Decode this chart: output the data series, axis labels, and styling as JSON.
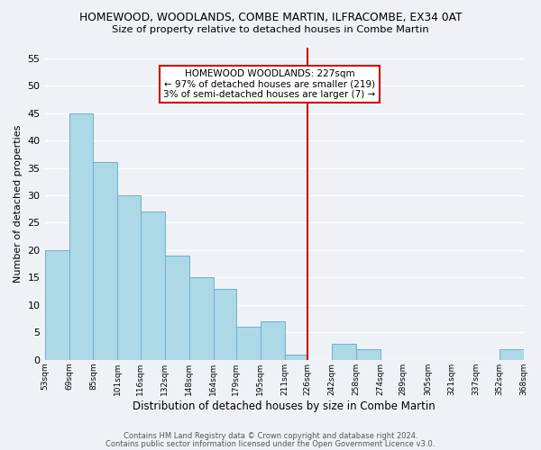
{
  "title": "HOMEWOOD, WOODLANDS, COMBE MARTIN, ILFRACOMBE, EX34 0AT",
  "subtitle": "Size of property relative to detached houses in Combe Martin",
  "xlabel": "Distribution of detached houses by size in Combe Martin",
  "ylabel": "Number of detached properties",
  "bar_color": "#add8e6",
  "bar_edge_color": "#6ab0d4",
  "background_color": "#eef2f7",
  "grid_color": "#ffffff",
  "bin_edges": [
    53,
    69,
    85,
    101,
    116,
    132,
    148,
    164,
    179,
    195,
    211,
    226,
    242,
    258,
    274,
    289,
    305,
    321,
    337,
    352,
    368
  ],
  "bin_labels": [
    "53sqm",
    "69sqm",
    "85sqm",
    "101sqm",
    "116sqm",
    "132sqm",
    "148sqm",
    "164sqm",
    "179sqm",
    "195sqm",
    "211sqm",
    "226sqm",
    "242sqm",
    "258sqm",
    "274sqm",
    "289sqm",
    "305sqm",
    "321sqm",
    "337sqm",
    "352sqm",
    "368sqm"
  ],
  "counts": [
    20,
    45,
    36,
    30,
    27,
    19,
    15,
    13,
    6,
    7,
    1,
    0,
    3,
    2,
    0,
    0,
    0,
    0,
    0,
    2
  ],
  "property_line_x": 226,
  "property_line_color": "#cc0000",
  "ylim": [
    0,
    57
  ],
  "yticks": [
    0,
    5,
    10,
    15,
    20,
    25,
    30,
    35,
    40,
    45,
    50,
    55
  ],
  "annotation_title": "HOMEWOOD WOODLANDS: 227sqm",
  "annotation_line1": "← 97% of detached houses are smaller (219)",
  "annotation_line2": "3% of semi-detached houses are larger (7) →",
  "footer_line1": "Contains HM Land Registry data © Crown copyright and database right 2024.",
  "footer_line2": "Contains public sector information licensed under the Open Government Licence v3.0."
}
